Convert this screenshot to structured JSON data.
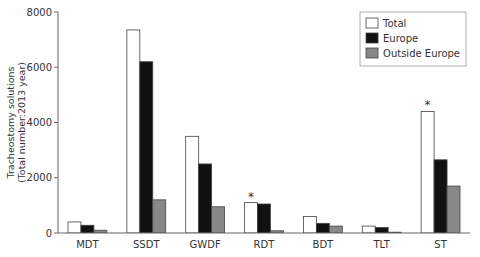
{
  "chart_data": {
    "type": "bar",
    "categories": [
      "MDT",
      "SSDT",
      "GWDF",
      "RDT",
      "BDT",
      "TLT",
      "ST"
    ],
    "series": [
      {
        "name": "Total",
        "color": "#ffffff",
        "values": [
          400,
          7350,
          3500,
          1100,
          600,
          250,
          4400
        ]
      },
      {
        "name": "Europe",
        "color": "#111111",
        "values": [
          280,
          6200,
          2500,
          1050,
          350,
          200,
          2650
        ]
      },
      {
        "name": "Outside Europe",
        "color": "#888888",
        "values": [
          100,
          1200,
          950,
          80,
          250,
          30,
          1700
        ]
      }
    ],
    "annotations": [
      {
        "text": "*",
        "category": "RDT",
        "series": "Total"
      },
      {
        "text": "*",
        "category": "ST",
        "series": "Total"
      }
    ],
    "ylabel": "Tracheostomy solutions\n(Total number:2013 year)",
    "ylim": [
      0,
      8000
    ],
    "yticks": [
      0,
      2000,
      4000,
      6000,
      8000
    ],
    "grid": false,
    "legend": "upper right"
  }
}
